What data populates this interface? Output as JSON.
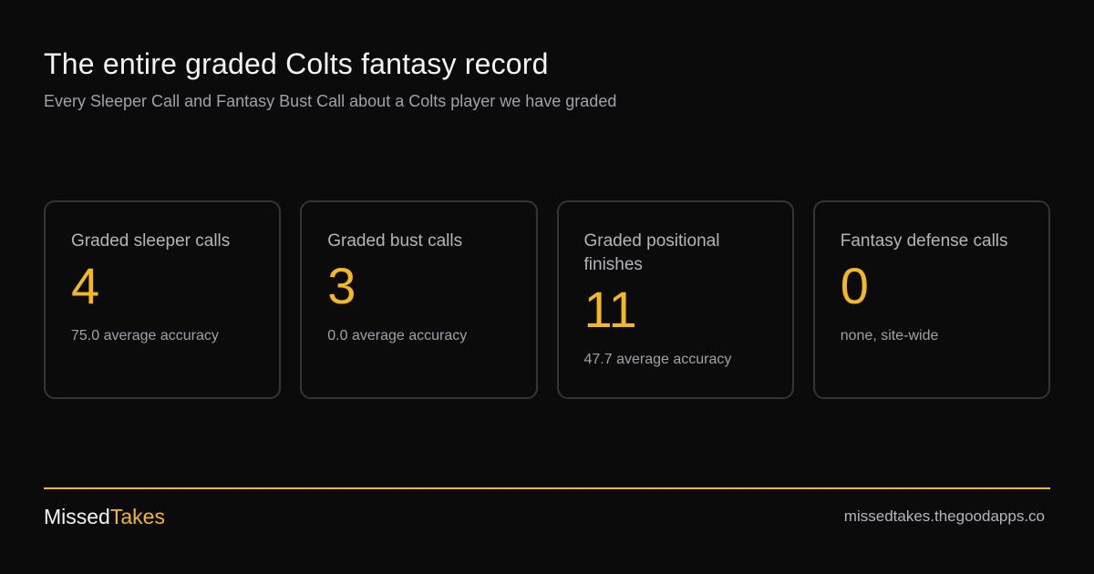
{
  "header": {
    "title": "The entire graded Colts fantasy record",
    "subtitle": "Every Sleeper Call and Fantasy Bust Call about a Colts player we have graded"
  },
  "stats": [
    {
      "label": "Graded sleeper calls",
      "value": "4",
      "note": "75.0 average accuracy"
    },
    {
      "label": "Graded bust calls",
      "value": "3",
      "note": "0.0 average accuracy"
    },
    {
      "label": "Graded positional finishes",
      "value": "11",
      "note": "47.7 average accuracy"
    },
    {
      "label": "Fantasy defense calls",
      "value": "0",
      "note": "none, site-wide"
    }
  ],
  "footer": {
    "brand_part1": "Missed",
    "brand_part2": "Takes",
    "url": "missedtakes.thegoodapps.co"
  },
  "colors": {
    "background": "#0b0b0c",
    "accent": "#f3b925",
    "card_border": "#34343a",
    "muted_text": "#a1a1aa"
  }
}
